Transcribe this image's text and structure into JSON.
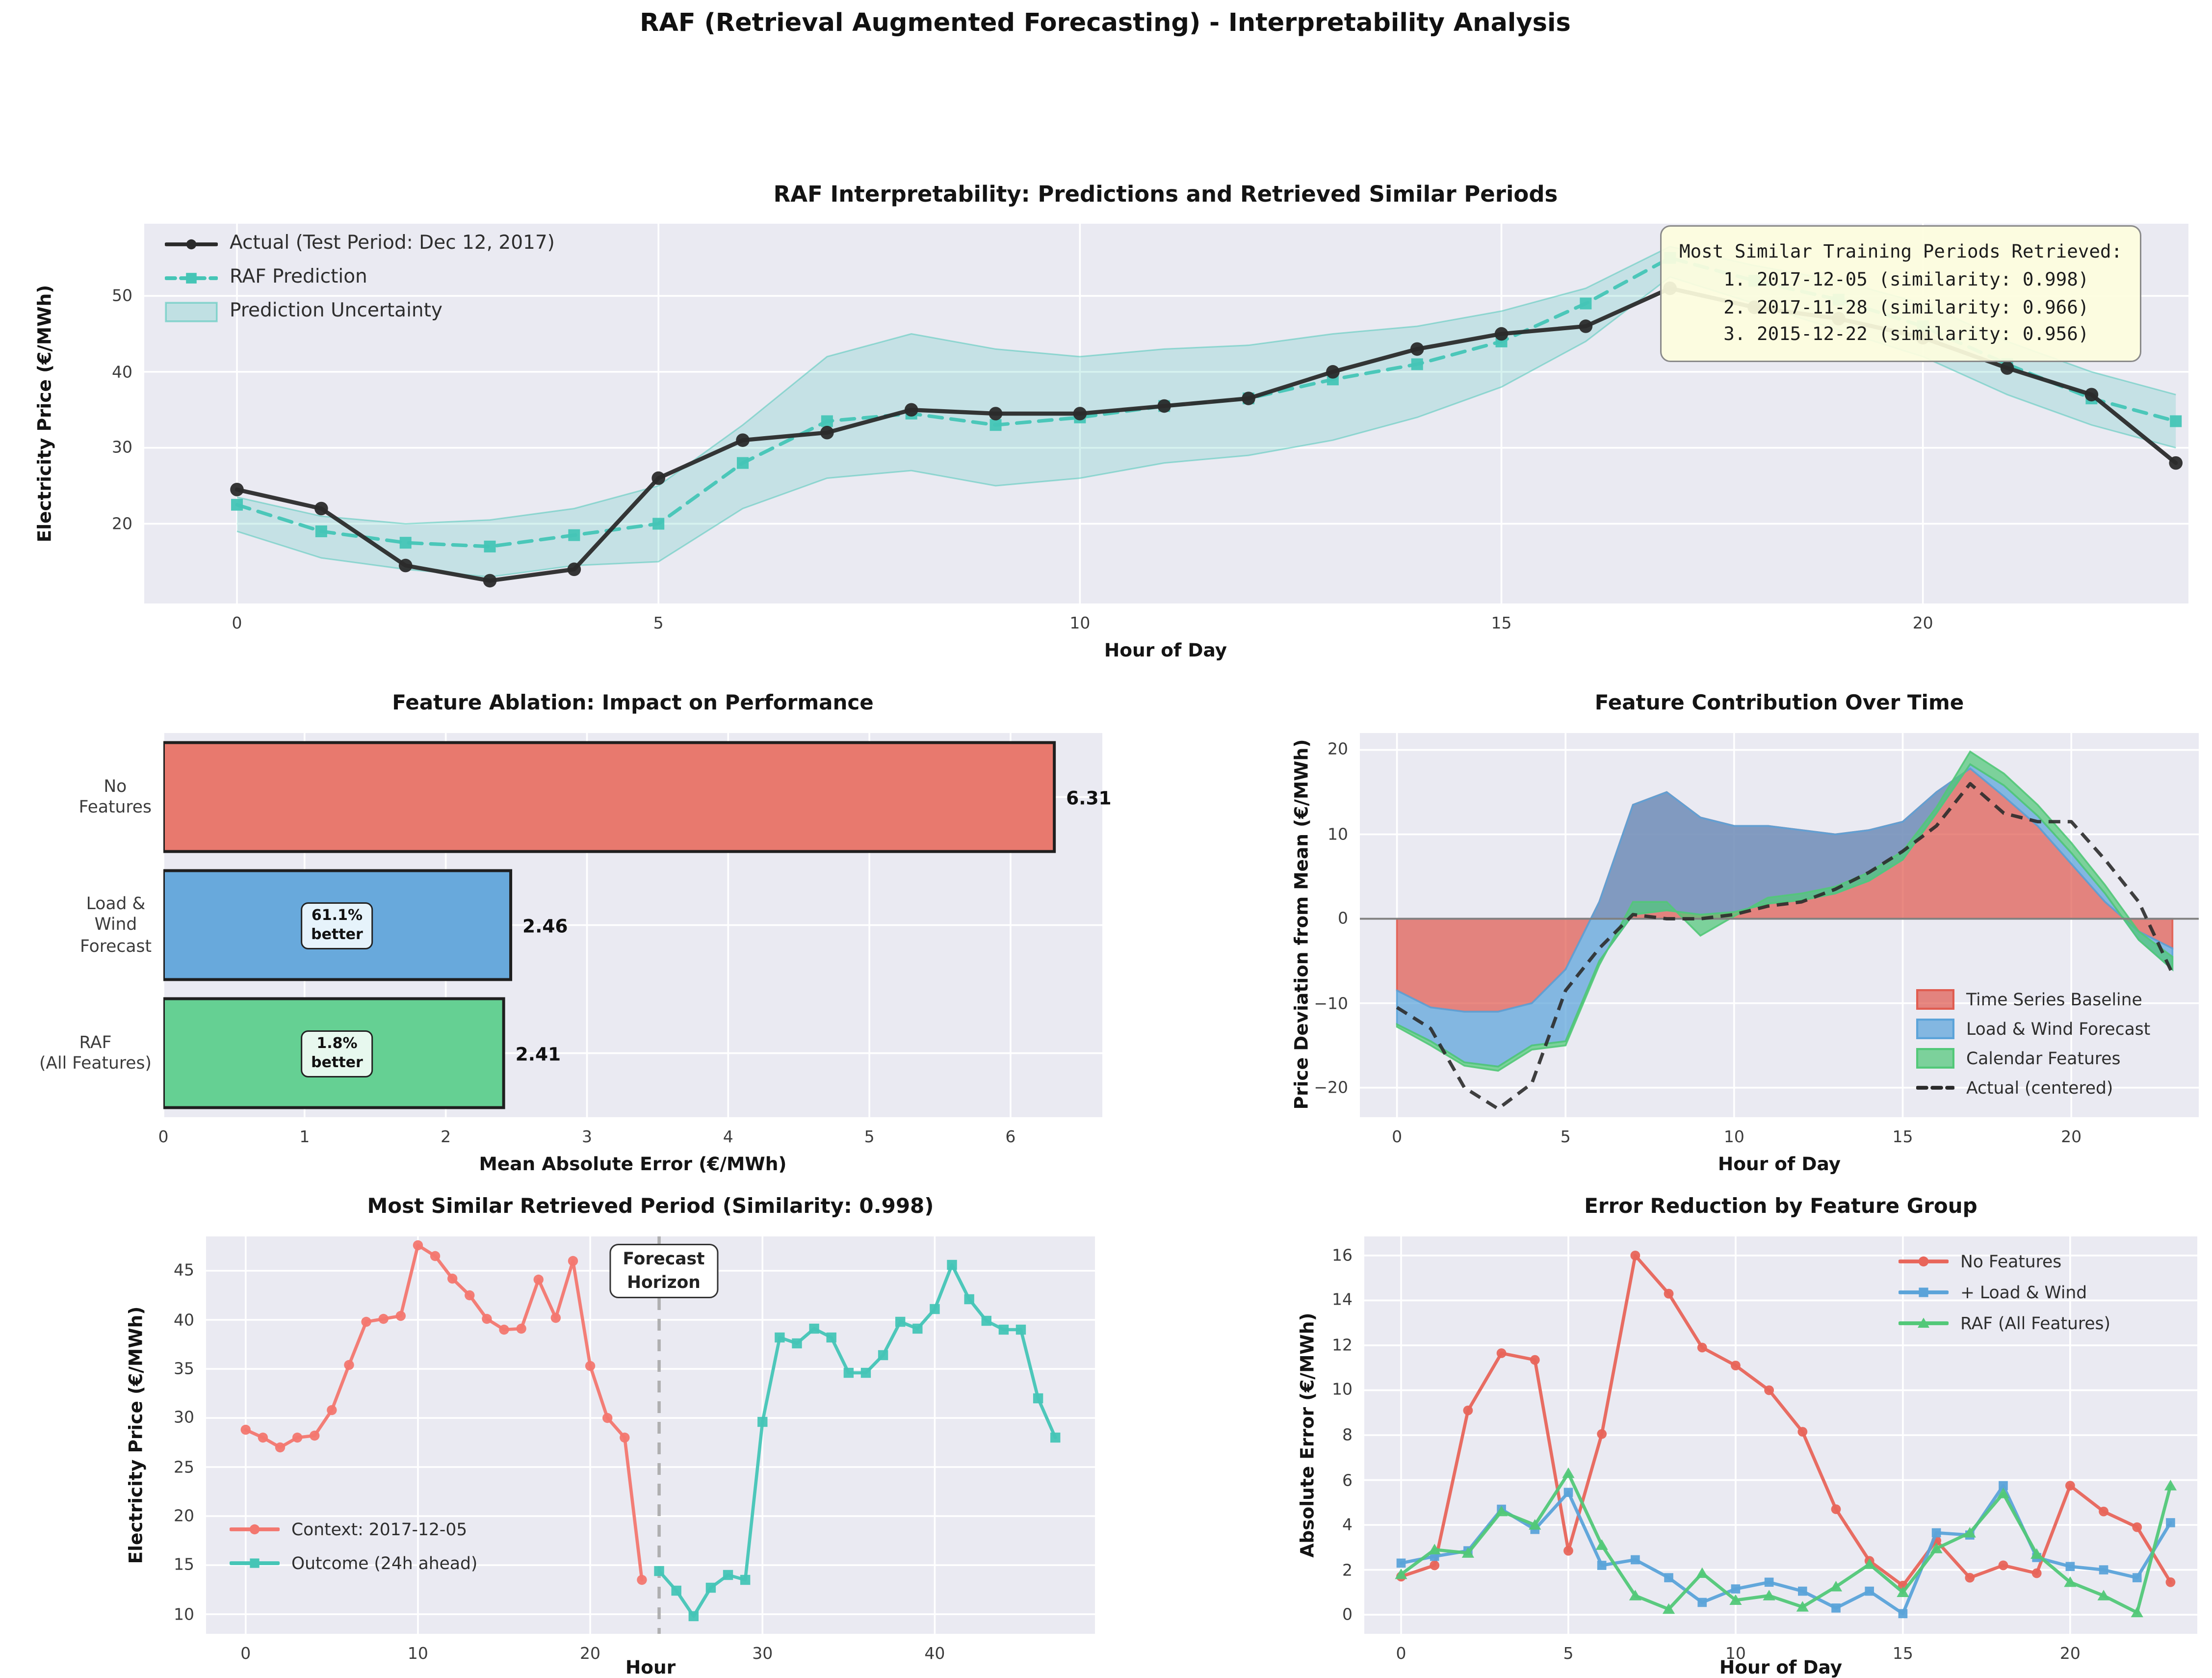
{
  "suptitle": "RAF (Retrieval Augmented Forecasting) - Interpretability Analysis",
  "style": {
    "figure_bg": "#ffffff",
    "axes_bg": "#eaeaf2",
    "grid": "#ffffff",
    "tick_color": "#3c3c3c",
    "text_color": "#141414",
    "zero_line": "#808080",
    "vline": "#a9a9a9",
    "annotation_bg": "#fcfcdc",
    "annotation_border": "#8a8a8a",
    "bar_edge": "#1f1f1f"
  },
  "chart_data": [
    {
      "id": "prediction",
      "type": "line",
      "title": "RAF Interpretability: Predictions and Retrieved Similar Periods",
      "xlabel": "Hour of Day",
      "ylabel": "Electricity Price (€/MWh)",
      "xlim": [
        -1.1,
        23.15
      ],
      "ylim": [
        9.5,
        59.5
      ],
      "xticks": [
        0,
        5,
        10,
        15,
        20
      ],
      "yticks": [
        20,
        30,
        40,
        50
      ],
      "series": [
        {
          "name": "Actual (Test Period: Dec 12, 2017)",
          "color": "#2b2b2b",
          "marker": "circle",
          "lw": 2.8,
          "msize": 4.6,
          "dash": null,
          "x_start": 0,
          "values": [
            24.5,
            22,
            14.5,
            12.5,
            14,
            26,
            31,
            32,
            35,
            34.5,
            34.5,
            35.5,
            36.5,
            40,
            43,
            45,
            46,
            51,
            48.5,
            47,
            44.5,
            40.5,
            37,
            28
          ]
        },
        {
          "name": "RAF Prediction",
          "color": "#45c5b6",
          "marker": "square",
          "lw": 2.4,
          "msize": 4,
          "dash": "9,6",
          "x_start": 0,
          "values": [
            22.5,
            19,
            17.5,
            17,
            18.5,
            20,
            28,
            33.5,
            34.5,
            33,
            34,
            35.5,
            36.5,
            39,
            41,
            44,
            49,
            55,
            52,
            49.5,
            46,
            41,
            36.5,
            33.5
          ]
        }
      ],
      "band": {
        "name": "Prediction Uncertainty",
        "color": "#45c5b6",
        "upper": [
          23.5,
          21,
          20,
          20.5,
          22,
          25,
          33,
          42,
          45,
          43,
          42,
          43,
          43.5,
          45,
          46,
          48,
          51,
          56.5,
          54,
          52,
          49,
          44,
          40,
          37
        ],
        "lower": [
          19,
          15.5,
          14,
          13,
          14.5,
          15,
          22,
          26,
          27,
          25,
          26,
          28,
          29,
          31,
          34,
          38,
          44,
          52.5,
          49,
          45.5,
          42,
          37,
          33,
          30
        ]
      },
      "annotation_box": {
        "text": "Most Similar Training Periods Retrieved:\n    1. 2017-12-05 (similarity: 0.998)\n    2. 2017-11-28 (similarity: 0.966)\n    3. 2015-12-22 (similarity: 0.956)"
      }
    },
    {
      "id": "ablation",
      "type": "bar",
      "title": "Feature Ablation: Impact on Performance",
      "xlabel": "Mean Absolute Error (€/MWh)",
      "xlim": [
        0,
        6.65
      ],
      "xticks": [
        0,
        1,
        2,
        3,
        4,
        5,
        6
      ],
      "bars": [
        {
          "label": "No\nFeatures",
          "value": 6.31,
          "value_label": "6.31",
          "color": "#e8796e",
          "annotation": null,
          "annotation_bg": null
        },
        {
          "label": "Load &\nWind\nForecast",
          "value": 2.46,
          "value_label": "2.46",
          "color": "#68a9dc",
          "annotation": "61.1%\nbetter",
          "annotation_bg": "#e6f3fb"
        },
        {
          "label": "RAF\n(All Features)",
          "value": 2.41,
          "value_label": "2.41",
          "color": "#65d093",
          "annotation": "1.8%\nbetter",
          "annotation_bg": "#e7f8ee"
        }
      ]
    },
    {
      "id": "contribution",
      "type": "area",
      "title": "Feature Contribution Over Time",
      "xlabel": "Hour of Day",
      "ylabel": "Price Deviation from Mean (€/MWh)",
      "xlim": [
        -1.1,
        23.78
      ],
      "ylim": [
        -23.5,
        22
      ],
      "xticks": [
        0,
        5,
        10,
        15,
        20
      ],
      "yticks": [
        -20,
        -10,
        0,
        10,
        20
      ],
      "layers": [
        {
          "name": "Time Series Baseline",
          "color": "#e05c50",
          "cumulative": [
            -8.5,
            -10.5,
            -11,
            -11,
            -10,
            -6,
            2,
            13.5,
            15,
            12,
            11,
            11,
            10.5,
            10,
            10.5,
            11.5,
            15,
            17.8,
            14.5,
            11,
            6.5,
            2,
            -1.5,
            -3.5
          ]
        },
        {
          "name": "Load & Wind Forecast",
          "color": "#5ba3d9",
          "cumulative": [
            -12.5,
            -14.5,
            -17,
            -17.5,
            -15,
            -14.5,
            -5,
            0.5,
            1,
            0.5,
            0.8,
            1.8,
            2.2,
            3,
            4.5,
            7,
            12.5,
            18.3,
            15.8,
            12.2,
            7.8,
            3,
            -2.5,
            -6
          ]
        },
        {
          "name": "Calendar Features",
          "color": "#52c878",
          "cumulative": [
            -12.8,
            -15,
            -17.4,
            -18,
            -15.5,
            -15,
            -5.5,
            2,
            2,
            -2,
            0.3,
            2.5,
            3,
            3.8,
            5.5,
            8,
            13.2,
            19.8,
            17.2,
            13.5,
            9,
            4,
            -1.5,
            -4.5
          ]
        }
      ],
      "actual": {
        "name": "Actual (centered)",
        "color": "#2b2b2b",
        "dash": "8,5",
        "lw": 2.3,
        "values": [
          -10.5,
          -13,
          -20,
          -22.5,
          -19.5,
          -8.5,
          -3.5,
          0.5,
          0,
          0,
          0.5,
          1.5,
          2,
          3.5,
          5.5,
          8,
          11,
          16,
          12.5,
          11.5,
          11.5,
          7,
          2,
          -6.5
        ]
      }
    },
    {
      "id": "retrieved",
      "type": "line",
      "title": "Most Similar Retrieved Period (Similarity: 0.998)",
      "xlabel": "Hour",
      "ylabel": "Electricity Price (€/MWh)",
      "xlim": [
        -2.3,
        49.3
      ],
      "ylim": [
        8,
        48.5
      ],
      "xticks": [
        0,
        10,
        20,
        30,
        40
      ],
      "yticks": [
        10,
        15,
        20,
        25,
        30,
        35,
        40,
        45
      ],
      "series": [
        {
          "name": "Context: 2017-12-05",
          "color": "#f3776f",
          "marker": "circle",
          "lw": 2.2,
          "msize": 3.4,
          "dash": null,
          "x_start": 0,
          "values": [
            28.8,
            28,
            27,
            28,
            28.2,
            30.8,
            35.4,
            39.8,
            40.1,
            40.4,
            47.6,
            46.5,
            44.2,
            42.5,
            40.1,
            39,
            39.1,
            44.1,
            40.2,
            46,
            35.3,
            30,
            28,
            13.5
          ]
        },
        {
          "name": "Outcome (24h ahead)",
          "color": "#45c5b6",
          "marker": "square",
          "lw": 2.2,
          "msize": 3.4,
          "dash": null,
          "x_start": 24,
          "values": [
            14.4,
            12.4,
            9.8,
            12.7,
            14,
            13.5,
            29.6,
            38.2,
            37.6,
            39.1,
            38.2,
            34.6,
            34.6,
            36.4,
            39.8,
            39.1,
            41.1,
            45.6,
            42.1,
            39.9,
            39,
            39,
            32,
            28
          ]
        }
      ],
      "vline": {
        "x": 24,
        "label": "Forecast\nHorizon"
      }
    },
    {
      "id": "errors",
      "type": "line",
      "title": "Error Reduction by Feature Group",
      "xlabel": "Hour of Day",
      "ylabel": "Absolute Error (€/MWh)",
      "xlim": [
        -1.1,
        23.8
      ],
      "ylim": [
        -0.85,
        16.85
      ],
      "xticks": [
        0,
        5,
        10,
        15,
        20
      ],
      "yticks": [
        0,
        2,
        4,
        6,
        8,
        10,
        12,
        14,
        16
      ],
      "series": [
        {
          "name": "No Features",
          "color": "#e8655a",
          "marker": "circle",
          "lw": 2.2,
          "msize": 3.3,
          "dash": null,
          "x_start": 0,
          "values": [
            1.7,
            2.2,
            9.1,
            11.65,
            11.35,
            2.85,
            8.05,
            16,
            14.3,
            11.9,
            11.1,
            10,
            8.15,
            4.7,
            2.4,
            1.3,
            3.3,
            1.65,
            2.2,
            1.85,
            5.75,
            4.6,
            3.9,
            1.45
          ]
        },
        {
          "name": "+ Load & Wind",
          "color": "#5ba3d9",
          "marker": "square",
          "lw": 2.2,
          "msize": 3.1,
          "dash": null,
          "x_start": 0,
          "values": [
            2.3,
            2.6,
            2.85,
            4.7,
            3.8,
            5.45,
            2.2,
            2.45,
            1.65,
            0.55,
            1.15,
            1.45,
            1.05,
            0.3,
            1.05,
            0.05,
            3.65,
            3.55,
            5.75,
            2.55,
            2.15,
            2.0,
            1.65,
            4.1
          ]
        },
        {
          "name": "RAF (All Features)",
          "color": "#52c878",
          "marker": "triangle",
          "lw": 2.2,
          "msize": 4,
          "dash": null,
          "x_start": 0,
          "values": [
            1.8,
            2.9,
            2.75,
            4.6,
            4.0,
            6.3,
            3.1,
            0.85,
            0.25,
            1.85,
            0.65,
            0.85,
            0.35,
            1.25,
            2.25,
            1.0,
            2.95,
            3.65,
            5.4,
            2.7,
            1.45,
            0.85,
            0.1,
            5.75
          ]
        }
      ]
    }
  ]
}
